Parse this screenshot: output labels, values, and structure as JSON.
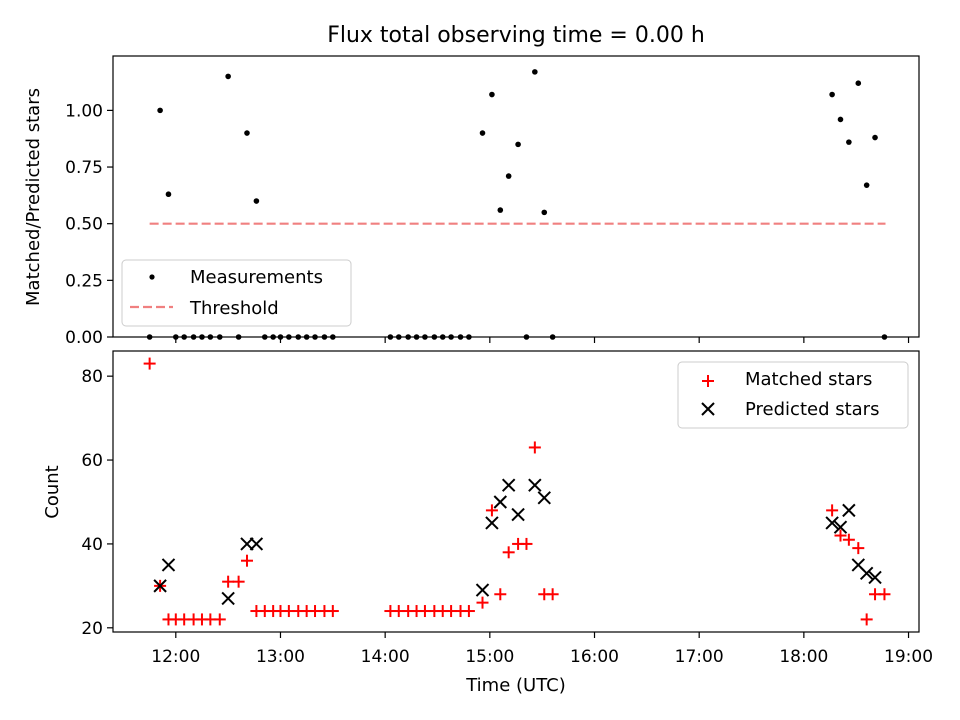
{
  "chart_data": [
    {
      "type": "scatter",
      "title": "Flux total observing time = 0.00 h",
      "xlabel": "",
      "ylabel": "Matched/Predicted stars",
      "xlim_hours": [
        11.4,
        19.1
      ],
      "ylim": [
        0,
        1.24
      ],
      "yticks": [
        {
          "value": 0.0,
          "label": "0.00"
        },
        {
          "value": 0.25,
          "label": "0.25"
        },
        {
          "value": 0.5,
          "label": "0.50"
        },
        {
          "value": 0.75,
          "label": "0.75"
        },
        {
          "value": 1.0,
          "label": "1.00"
        }
      ],
      "legend": {
        "position": "lower-left",
        "items": [
          {
            "label": "Measurements",
            "marker": "dot",
            "color": "#000000"
          },
          {
            "label": "Threshold",
            "marker": "dashed-line",
            "color": "#f08080"
          }
        ]
      },
      "threshold": {
        "value": 0.5,
        "x_range": [
          11.75,
          18.78
        ],
        "color": "#f08080"
      },
      "series": [
        {
          "name": "Measurements",
          "color": "#000000",
          "points": [
            [
              11.75,
              0
            ],
            [
              11.85,
              1.0
            ],
            [
              11.93,
              0.63
            ],
            [
              12.0,
              0
            ],
            [
              12.08,
              0
            ],
            [
              12.17,
              0
            ],
            [
              12.25,
              0
            ],
            [
              12.33,
              0
            ],
            [
              12.42,
              0
            ],
            [
              12.5,
              1.15
            ],
            [
              12.6,
              0
            ],
            [
              12.68,
              0.9
            ],
            [
              12.77,
              0.6
            ],
            [
              12.85,
              0
            ],
            [
              12.93,
              0
            ],
            [
              13.0,
              0
            ],
            [
              13.08,
              0
            ],
            [
              13.17,
              0
            ],
            [
              13.25,
              0
            ],
            [
              13.33,
              0
            ],
            [
              13.42,
              0
            ],
            [
              13.5,
              0
            ],
            [
              14.05,
              0
            ],
            [
              14.13,
              0
            ],
            [
              14.22,
              0
            ],
            [
              14.3,
              0
            ],
            [
              14.38,
              0
            ],
            [
              14.47,
              0
            ],
            [
              14.55,
              0
            ],
            [
              14.63,
              0
            ],
            [
              14.72,
              0
            ],
            [
              14.8,
              0
            ],
            [
              14.93,
              0.9
            ],
            [
              15.02,
              1.07
            ],
            [
              15.1,
              0.56
            ],
            [
              15.18,
              0.71
            ],
            [
              15.27,
              0.85
            ],
            [
              15.35,
              0
            ],
            [
              15.43,
              1.17
            ],
            [
              15.52,
              0.55
            ],
            [
              15.6,
              0
            ],
            [
              18.27,
              1.07
            ],
            [
              18.35,
              0.96
            ],
            [
              18.43,
              0.86
            ],
            [
              18.52,
              1.12
            ],
            [
              18.6,
              0.67
            ],
            [
              18.68,
              0.88
            ],
            [
              18.77,
              0
            ]
          ]
        }
      ]
    },
    {
      "type": "scatter",
      "title": "",
      "xlabel": "Time (UTC)",
      "ylabel": "Count",
      "xlim_hours": [
        11.4,
        19.1
      ],
      "ylim": [
        19,
        86
      ],
      "yticks": [
        {
          "value": 20,
          "label": "20"
        },
        {
          "value": 40,
          "label": "40"
        },
        {
          "value": 60,
          "label": "60"
        },
        {
          "value": 80,
          "label": "80"
        }
      ],
      "xticks": [
        {
          "value": 12,
          "label": "12:00"
        },
        {
          "value": 13,
          "label": "13:00"
        },
        {
          "value": 14,
          "label": "14:00"
        },
        {
          "value": 15,
          "label": "15:00"
        },
        {
          "value": 16,
          "label": "16:00"
        },
        {
          "value": 17,
          "label": "17:00"
        },
        {
          "value": 18,
          "label": "18:00"
        },
        {
          "value": 19,
          "label": "19:00"
        }
      ],
      "legend": {
        "position": "top-right",
        "items": [
          {
            "label": "Matched stars",
            "marker": "plus",
            "color": "#ff0000"
          },
          {
            "label": "Predicted stars",
            "marker": "x",
            "color": "#000000"
          }
        ]
      },
      "series": [
        {
          "name": "Matched stars",
          "marker": "plus",
          "color": "#ff0000",
          "points": [
            [
              11.75,
              83
            ],
            [
              11.85,
              30
            ],
            [
              11.93,
              22
            ],
            [
              12.0,
              22
            ],
            [
              12.08,
              22
            ],
            [
              12.17,
              22
            ],
            [
              12.25,
              22
            ],
            [
              12.33,
              22
            ],
            [
              12.42,
              22
            ],
            [
              12.5,
              31
            ],
            [
              12.6,
              31
            ],
            [
              12.68,
              36
            ],
            [
              12.77,
              24
            ],
            [
              12.85,
              24
            ],
            [
              12.93,
              24
            ],
            [
              13.0,
              24
            ],
            [
              13.08,
              24
            ],
            [
              13.17,
              24
            ],
            [
              13.25,
              24
            ],
            [
              13.33,
              24
            ],
            [
              13.42,
              24
            ],
            [
              13.5,
              24
            ],
            [
              14.05,
              24
            ],
            [
              14.13,
              24
            ],
            [
              14.22,
              24
            ],
            [
              14.3,
              24
            ],
            [
              14.38,
              24
            ],
            [
              14.47,
              24
            ],
            [
              14.55,
              24
            ],
            [
              14.63,
              24
            ],
            [
              14.72,
              24
            ],
            [
              14.8,
              24
            ],
            [
              14.93,
              26
            ],
            [
              15.02,
              48
            ],
            [
              15.1,
              28
            ],
            [
              15.18,
              38
            ],
            [
              15.27,
              40
            ],
            [
              15.35,
              40
            ],
            [
              15.43,
              63
            ],
            [
              15.52,
              28
            ],
            [
              15.6,
              28
            ],
            [
              18.27,
              48
            ],
            [
              18.35,
              42
            ],
            [
              18.43,
              41
            ],
            [
              18.52,
              39
            ],
            [
              18.6,
              22
            ],
            [
              18.68,
              28
            ],
            [
              18.77,
              28
            ]
          ]
        },
        {
          "name": "Predicted stars",
          "marker": "x",
          "color": "#000000",
          "points": [
            [
              11.85,
              30
            ],
            [
              11.93,
              35
            ],
            [
              12.5,
              27
            ],
            [
              12.68,
              40
            ],
            [
              12.77,
              40
            ],
            [
              14.93,
              29
            ],
            [
              15.02,
              45
            ],
            [
              15.1,
              50
            ],
            [
              15.18,
              54
            ],
            [
              15.27,
              47
            ],
            [
              15.43,
              54
            ],
            [
              15.52,
              51
            ],
            [
              18.27,
              45
            ],
            [
              18.35,
              44
            ],
            [
              18.43,
              48
            ],
            [
              18.52,
              35
            ],
            [
              18.6,
              33
            ],
            [
              18.68,
              32
            ]
          ]
        }
      ]
    }
  ]
}
